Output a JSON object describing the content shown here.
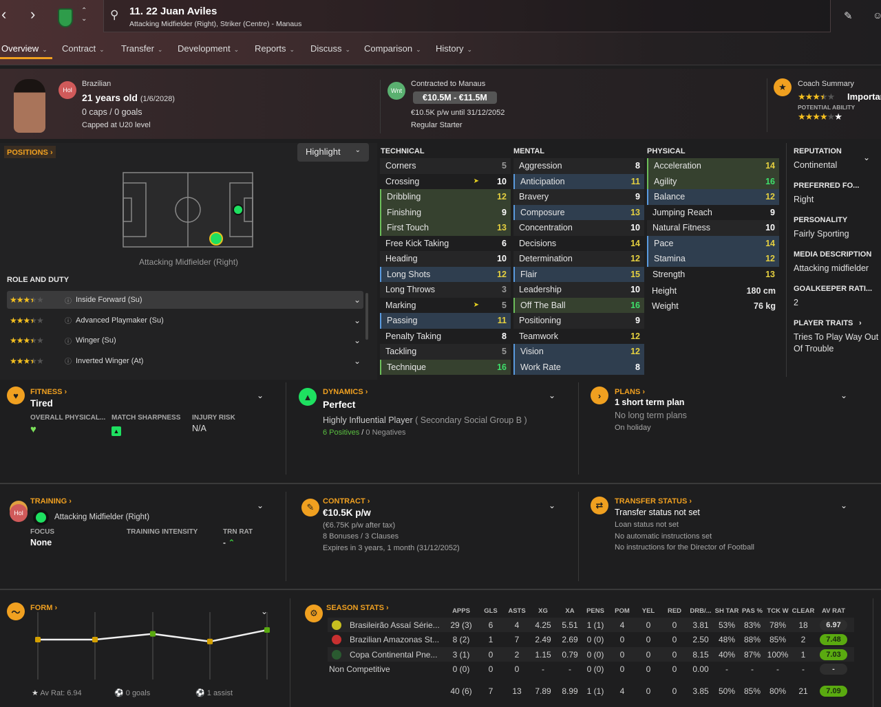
{
  "header": {
    "title": "11. 22 Juan Aviles",
    "subtitle": "Attacking Midfielder (Right), Striker (Centre) - Manaus"
  },
  "tabs": [
    {
      "label": "Overview"
    },
    {
      "label": "Contract"
    },
    {
      "label": "Transfer"
    },
    {
      "label": "Development"
    },
    {
      "label": "Reports"
    },
    {
      "label": "Discuss"
    },
    {
      "label": "Comparison"
    },
    {
      "label": "History"
    }
  ],
  "profile": {
    "personality_badge": "Hol",
    "nationality": "Brazilian",
    "age": "21 years old",
    "dob": "(1/6/2028)",
    "caps": "0 caps / 0 goals",
    "capped": "Capped at U20 level",
    "status_badge": "Wnt",
    "contract_label": "Contracted to Manaus",
    "value": "€10.5M - €11.5M",
    "wage": "€10.5K p/w until 31/12/2052",
    "role": "Regular Starter",
    "coach_summary": "Coach Summary",
    "current_stars": 3.5,
    "importance": "Importan",
    "potential_label": "POTENTIAL ABILITY",
    "potential_stars": 4.5
  },
  "positions": {
    "title": "POSITIONS",
    "highlight_label": "Highlight",
    "position_label": "Attacking Midfielder (Right)",
    "role_title": "ROLE AND DUTY",
    "roles": [
      {
        "name": "Inside Forward (Su)",
        "stars": 3.5
      },
      {
        "name": "Advanced Playmaker (Su)",
        "stars": 3.5
      },
      {
        "name": "Winger (Su)",
        "stars": 3.5
      },
      {
        "name": "Inverted Winger (At)",
        "stars": 3.5
      }
    ]
  },
  "attributes": {
    "technical": {
      "title": "TECHNICAL",
      "items": [
        {
          "n": "Corners",
          "v": 5,
          "hl": ""
        },
        {
          "n": "Crossing",
          "v": 10,
          "hl": "",
          "flag": true
        },
        {
          "n": "Dribbling",
          "v": 12,
          "hl": "g"
        },
        {
          "n": "Finishing",
          "v": 9,
          "hl": "g"
        },
        {
          "n": "First Touch",
          "v": 13,
          "hl": "g"
        },
        {
          "n": "Free Kick Taking",
          "v": 6,
          "hl": ""
        },
        {
          "n": "Heading",
          "v": 10,
          "hl": ""
        },
        {
          "n": "Long Shots",
          "v": 12,
          "hl": "b"
        },
        {
          "n": "Long Throws",
          "v": 3,
          "hl": ""
        },
        {
          "n": "Marking",
          "v": 5,
          "hl": "",
          "flag": true
        },
        {
          "n": "Passing",
          "v": 11,
          "hl": "b"
        },
        {
          "n": "Penalty Taking",
          "v": 8,
          "hl": ""
        },
        {
          "n": "Tackling",
          "v": 5,
          "hl": ""
        },
        {
          "n": "Technique",
          "v": 16,
          "hl": "g"
        }
      ]
    },
    "mental": {
      "title": "MENTAL",
      "items": [
        {
          "n": "Aggression",
          "v": 8,
          "hl": ""
        },
        {
          "n": "Anticipation",
          "v": 11,
          "hl": "b"
        },
        {
          "n": "Bravery",
          "v": 9,
          "hl": ""
        },
        {
          "n": "Composure",
          "v": 13,
          "hl": "b"
        },
        {
          "n": "Concentration",
          "v": 10,
          "hl": ""
        },
        {
          "n": "Decisions",
          "v": 14,
          "hl": ""
        },
        {
          "n": "Determination",
          "v": 12,
          "hl": ""
        },
        {
          "n": "Flair",
          "v": 15,
          "hl": "b"
        },
        {
          "n": "Leadership",
          "v": 10,
          "hl": ""
        },
        {
          "n": "Off The Ball",
          "v": 16,
          "hl": "g"
        },
        {
          "n": "Positioning",
          "v": 9,
          "hl": ""
        },
        {
          "n": "Teamwork",
          "v": 12,
          "hl": ""
        },
        {
          "n": "Vision",
          "v": 12,
          "hl": "b"
        },
        {
          "n": "Work Rate",
          "v": 8,
          "hl": "b"
        }
      ]
    },
    "physical": {
      "title": "PHYSICAL",
      "items": [
        {
          "n": "Acceleration",
          "v": 14,
          "hl": "g"
        },
        {
          "n": "Agility",
          "v": 16,
          "hl": "g"
        },
        {
          "n": "Balance",
          "v": 12,
          "hl": "b"
        },
        {
          "n": "Jumping Reach",
          "v": 9,
          "hl": ""
        },
        {
          "n": "Natural Fitness",
          "v": 10,
          "hl": ""
        },
        {
          "n": "Pace",
          "v": 14,
          "hl": "b"
        },
        {
          "n": "Stamina",
          "v": 12,
          "hl": "b"
        },
        {
          "n": "Strength",
          "v": 13,
          "hl": ""
        }
      ],
      "height_label": "Height",
      "height": "180 cm",
      "weight_label": "Weight",
      "weight": "76 kg"
    }
  },
  "sidebar": [
    {
      "h": "REPUTATION",
      "v": "Continental"
    },
    {
      "h": "PREFERRED FO...",
      "v": "Right"
    },
    {
      "h": "PERSONALITY",
      "v": "Fairly Sporting"
    },
    {
      "h": "MEDIA DESCRIPTION",
      "v": "Attacking midfielder"
    },
    {
      "h": "GOALKEEPER RATI...",
      "v": "2"
    },
    {
      "h": "PLAYER TRAITS",
      "v": "Tries To Play Way Out Of Trouble"
    }
  ],
  "fitness": {
    "title": "FITNESS",
    "status": "Tired",
    "c1": "OVERALL PHYSICAL...",
    "c2": "MATCH SHARPNESS",
    "c3": "INJURY RISK",
    "injury": "N/A"
  },
  "dynamics": {
    "title": "DYNAMICS",
    "status": "Perfect",
    "influence": "Highly Influential Player",
    "group": "( Secondary Social Group B )",
    "positives": "6 Positives",
    "sep": "/",
    "negatives": "0 Negatives"
  },
  "plans": {
    "title": "PLANS",
    "status": "1 short term plan",
    "l1": "No long term plans",
    "l2": "On holiday"
  },
  "training": {
    "title": "TRAINING",
    "badge": "Hol",
    "position": "Attacking Midfielder (Right)",
    "focus_label": "FOCUS",
    "focus": "None",
    "intensity_label": "TRAINING INTENSITY",
    "rat_label": "TRN RAT",
    "rat": "-"
  },
  "contract": {
    "title": "CONTRACT",
    "wage": "€10.5K p/w",
    "after_tax": "(€6.75K p/w after tax)",
    "bonuses": "8 Bonuses / 3 Clauses",
    "expires": "Expires in 3 years, 1 month (31/12/2052)"
  },
  "transfer": {
    "title": "TRANSFER STATUS",
    "status": "Transfer status not set",
    "l1": "Loan status not set",
    "l2": "No automatic instructions set",
    "l3": "No instructions for the Director of Football"
  },
  "form": {
    "title": "FORM",
    "av_rat": "Av Rat: 6.94",
    "goals": "0 goals",
    "assists": "1 assist",
    "ratings": [
      6.8,
      6.8,
      7.1,
      6.7,
      7.3
    ],
    "colors": {
      "below7": "#d4a000",
      "above7": "#5aaa10"
    }
  },
  "season": {
    "title": "SEASON STATS",
    "columns": [
      "APPS",
      "GLS",
      "ASTS",
      "XG",
      "XA",
      "PENS",
      "POM",
      "YEL",
      "RED",
      "DRB/...",
      "SH TAR",
      "PAS %",
      "TCK W",
      "CLEAR",
      "AV RAT"
    ],
    "rows": [
      {
        "comp": "Brasileirão Assaí Série...",
        "icon": "league-icon",
        "cells": [
          "29 (3)",
          "6",
          "4",
          "4.25",
          "5.51",
          "1 (1)",
          "4",
          "0",
          "0",
          "3.81",
          "53%",
          "83%",
          "78%",
          "18",
          "6.97"
        ],
        "rat_color": "#2e2e2e"
      },
      {
        "comp": "Brazilian Amazonas St...",
        "icon": "state-cup-icon",
        "cells": [
          "8 (2)",
          "1",
          "7",
          "2.49",
          "2.69",
          "0 (0)",
          "0",
          "0",
          "0",
          "2.50",
          "48%",
          "88%",
          "85%",
          "2",
          "7.48"
        ],
        "rat_color": "#5aaa10"
      },
      {
        "comp": "Copa Continental Pne...",
        "icon": "continental-cup-icon",
        "cells": [
          "3 (1)",
          "0",
          "2",
          "1.15",
          "0.79",
          "0 (0)",
          "0",
          "0",
          "0",
          "8.15",
          "40%",
          "87%",
          "100%",
          "1",
          "7.03"
        ],
        "rat_color": "#5aaa10"
      },
      {
        "comp": "Non Competitive",
        "icon": "",
        "cells": [
          "0 (0)",
          "0",
          "0",
          "-",
          "-",
          "0 (0)",
          "0",
          "0",
          "0",
          "0.00",
          "-",
          "-",
          "-",
          "-",
          "-"
        ],
        "rat_color": "#2e2e2e"
      }
    ],
    "total": [
      "40 (6)",
      "7",
      "13",
      "7.89",
      "8.99",
      "1 (1)",
      "4",
      "0",
      "0",
      "3.85",
      "50%",
      "85%",
      "80%",
      "21",
      "7.09"
    ],
    "total_rat_color": "#5aaa10"
  }
}
